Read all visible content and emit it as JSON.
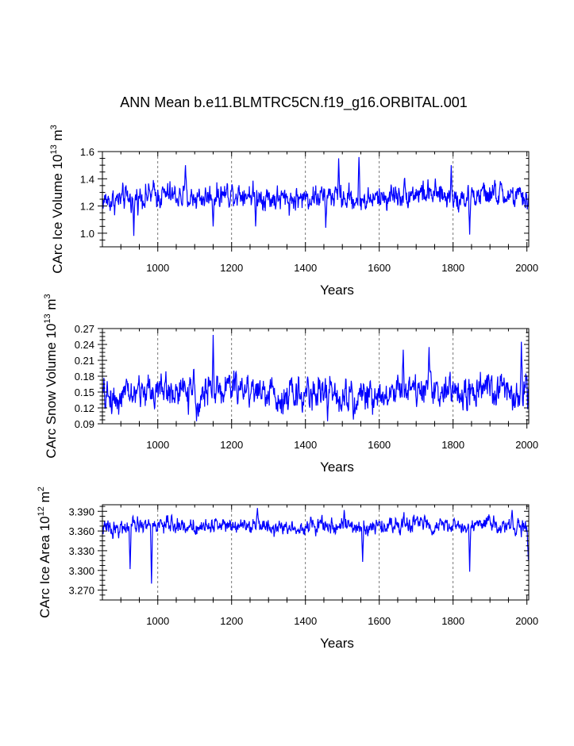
{
  "title": "ANN Mean b.e11.BLMTRC5CN.f19_g16.ORBITAL.001",
  "colors": {
    "series": "#0000ff",
    "axis": "#000000",
    "grid": "#555555"
  },
  "chart_data": [
    {
      "type": "line",
      "xlabel": "Years",
      "ylabel": {
        "text": "CArc Ice Volume 10",
        "exp1": "13",
        "unit": " m",
        "exp2": "3"
      },
      "xlim": [
        850,
        2005
      ],
      "ylim": [
        0.9,
        1.6
      ],
      "xticks": [
        1000,
        1200,
        1400,
        1600,
        1800,
        2000
      ],
      "yticks": [
        1.0,
        1.2,
        1.4,
        1.6
      ],
      "ytick_labels": [
        "1.0",
        "1.2",
        "1.4",
        "1.6"
      ],
      "grid_x": [
        1000,
        1200,
        1400,
        1600,
        1800
      ],
      "series_style": {
        "mean": 1.27,
        "amp": 0.085,
        "dips": [
          [
            935,
            0.98
          ],
          [
            1150,
            1.05
          ],
          [
            1265,
            1.05
          ],
          [
            1455,
            1.04
          ],
          [
            1845,
            0.99
          ]
        ],
        "peaks": [
          [
            1075,
            1.5
          ],
          [
            1490,
            1.55
          ],
          [
            1545,
            1.56
          ],
          [
            1795,
            1.5
          ]
        ]
      }
    },
    {
      "type": "line",
      "xlabel": "Years",
      "ylabel": {
        "text": "CArc Snow Volume 10",
        "exp1": "13",
        "unit": " m",
        "exp2": "3"
      },
      "xlim": [
        850,
        2005
      ],
      "ylim": [
        0.09,
        0.27
      ],
      "xticks": [
        1000,
        1200,
        1400,
        1600,
        1800,
        2000
      ],
      "yticks": [
        0.09,
        0.12,
        0.15,
        0.18,
        0.21,
        0.24,
        0.27
      ],
      "ytick_labels": [
        "0.09",
        "0.12",
        "0.15",
        "0.18",
        "0.21",
        "0.24",
        "0.27"
      ],
      "grid_x": [
        1000,
        1200,
        1400,
        1600,
        1800
      ],
      "series_style": {
        "mean": 0.15,
        "amp": 0.028,
        "dips": [
          [
            1105,
            0.095
          ],
          [
            1460,
            0.095
          ],
          [
            1530,
            0.098
          ]
        ],
        "peaks": [
          [
            1150,
            0.258
          ],
          [
            1665,
            0.23
          ],
          [
            1735,
            0.235
          ],
          [
            1985,
            0.245
          ]
        ]
      }
    },
    {
      "type": "line",
      "xlabel": "Years",
      "ylabel": {
        "text": "CArc Ice Area 10",
        "exp1": "12",
        "unit": " m",
        "exp2": "2"
      },
      "xlim": [
        850,
        2005
      ],
      "ylim": [
        3.255,
        3.4
      ],
      "xticks": [
        1000,
        1200,
        1400,
        1600,
        1800,
        2000
      ],
      "yticks": [
        3.27,
        3.3,
        3.33,
        3.36,
        3.39
      ],
      "ytick_labels": [
        "3.270",
        "3.300",
        "3.330",
        "3.360",
        "3.390"
      ],
      "grid_x": [
        1000,
        1200,
        1400,
        1600,
        1800
      ],
      "series_style": {
        "mean": 3.368,
        "amp": 0.011,
        "dips": [
          [
            983,
            3.28
          ],
          [
            925,
            3.302
          ],
          [
            1555,
            3.313
          ],
          [
            1845,
            3.298
          ],
          [
            2004,
            3.316
          ]
        ],
        "peaks": [
          [
            1270,
            3.395
          ],
          [
            1505,
            3.392
          ],
          [
            1960,
            3.392
          ]
        ]
      }
    }
  ]
}
